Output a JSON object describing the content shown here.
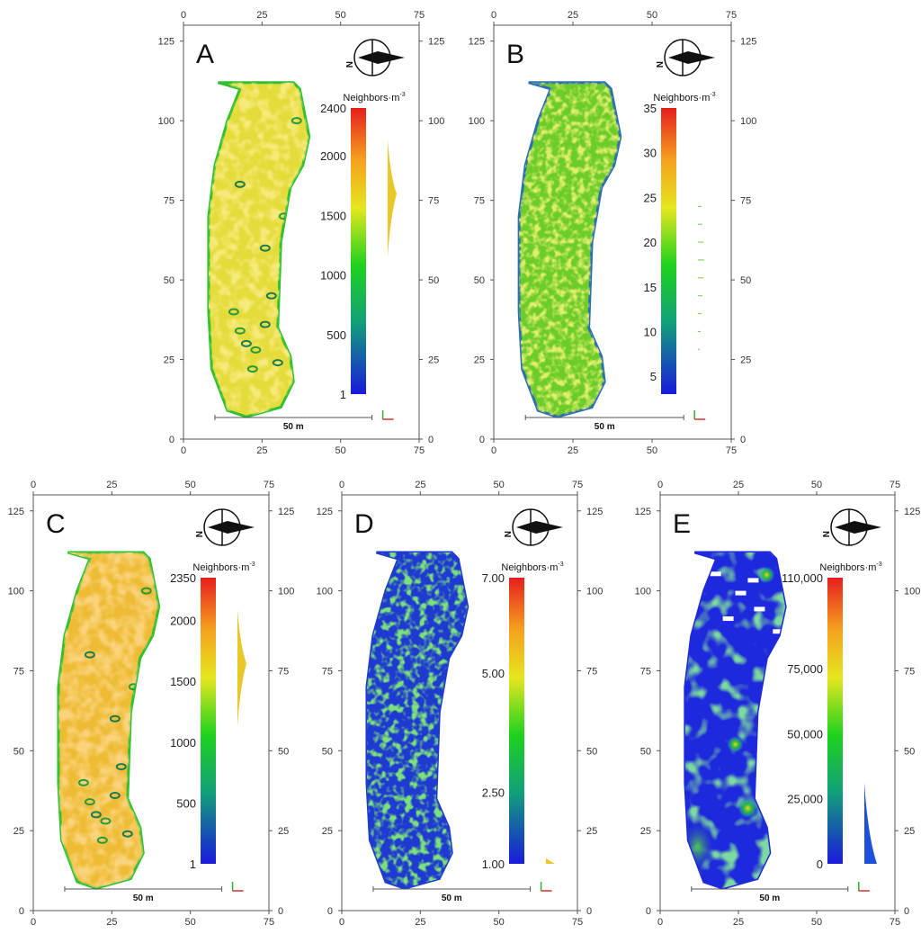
{
  "chart_data": [
    {
      "type": "heatmap",
      "panel_label": "A",
      "colorbar_title": "Neighbors·m",
      "colorbar_title_sup": "-3",
      "colorbar_ticks": [
        "2400",
        "2000",
        "1500",
        "1000",
        "500",
        "1"
      ],
      "colorbar_tick_values": [
        2400,
        2000,
        1500,
        1000,
        500,
        1
      ],
      "colorbar_range": [
        1,
        2400
      ],
      "x_ticks": [
        "0",
        "25",
        "50",
        "75"
      ],
      "y_ticks": [
        "0",
        "25",
        "50",
        "75",
        "100",
        "125"
      ],
      "xlim": [
        0,
        75
      ],
      "ylim": [
        0,
        130
      ],
      "scale_bar_label": "50 m",
      "compass_label": "N",
      "dominant_colors": [
        "#e6e632",
        "#f0a030",
        "#28c028",
        "#1e5ab4"
      ]
    },
    {
      "type": "heatmap",
      "panel_label": "B",
      "colorbar_title": "Neighbors·m",
      "colorbar_title_sup": "-3",
      "colorbar_ticks": [
        "35",
        "30",
        "25",
        "20",
        "15",
        "10",
        "5"
      ],
      "colorbar_tick_values": [
        35,
        30,
        25,
        20,
        15,
        10,
        5
      ],
      "colorbar_range": [
        3,
        35
      ],
      "x_ticks": [
        "0",
        "25",
        "50",
        "75"
      ],
      "y_ticks": [
        "0",
        "25",
        "50",
        "75",
        "100",
        "125"
      ],
      "xlim": [
        0,
        75
      ],
      "ylim": [
        0,
        130
      ],
      "scale_bar_label": "50 m",
      "compass_label": "N",
      "dominant_colors": [
        "#50c828",
        "#a0d828",
        "#1e5ab4"
      ]
    },
    {
      "type": "heatmap",
      "panel_label": "C",
      "colorbar_title": "Neighbors·m",
      "colorbar_title_sup": "-3",
      "colorbar_ticks": [
        "2350",
        "2000",
        "1500",
        "1000",
        "500",
        "1"
      ],
      "colorbar_tick_values": [
        2350,
        2000,
        1500,
        1000,
        500,
        1
      ],
      "colorbar_range": [
        1,
        2350
      ],
      "x_ticks": [
        "0",
        "25",
        "50",
        "75"
      ],
      "y_ticks": [
        "0",
        "25",
        "50",
        "75",
        "100",
        "125"
      ],
      "xlim": [
        0,
        75
      ],
      "ylim": [
        0,
        130
      ],
      "scale_bar_label": "50 m",
      "compass_label": "N",
      "dominant_colors": [
        "#f0b030",
        "#e6e632",
        "#28c028",
        "#1e5ab4"
      ]
    },
    {
      "type": "heatmap",
      "panel_label": "D",
      "colorbar_title": "Neighbors·m",
      "colorbar_title_sup": "-3",
      "colorbar_ticks": [
        "7.00",
        "5.00",
        "2.50",
        "1.00"
      ],
      "colorbar_tick_values": [
        7,
        5,
        2.5,
        1
      ],
      "colorbar_range": [
        1,
        7
      ],
      "x_ticks": [
        "0",
        "25",
        "50",
        "75"
      ],
      "y_ticks": [
        "0",
        "25",
        "50",
        "75",
        "100",
        "125"
      ],
      "xlim": [
        0,
        75
      ],
      "ylim": [
        0,
        130
      ],
      "scale_bar_label": "50 m",
      "compass_label": "N",
      "dominant_colors": [
        "#1e3cd2",
        "#28b428",
        "#d2d232"
      ]
    },
    {
      "type": "heatmap",
      "panel_label": "E",
      "colorbar_title": "Neighbors·m",
      "colorbar_title_sup": "-3",
      "colorbar_ticks": [
        "110,000",
        "75,000",
        "50,000",
        "25,000",
        "0"
      ],
      "colorbar_tick_values": [
        110000,
        75000,
        50000,
        25000,
        0
      ],
      "colorbar_range": [
        0,
        110000
      ],
      "x_ticks": [
        "0",
        "25",
        "50",
        "75"
      ],
      "y_ticks": [
        "0",
        "25",
        "50",
        "75",
        "100",
        "125"
      ],
      "xlim": [
        0,
        75
      ],
      "ylim": [
        0,
        130
      ],
      "scale_bar_label": "50 m",
      "compass_label": "N",
      "dominant_colors": [
        "#1e28dc",
        "#28b428",
        "#e6c828"
      ]
    }
  ]
}
